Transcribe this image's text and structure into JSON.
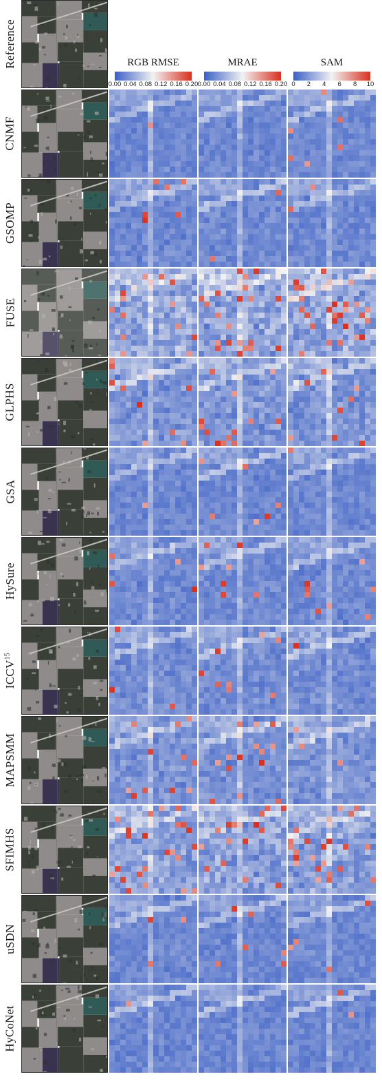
{
  "rows": [
    {
      "label": "Reference",
      "sup": "",
      "has_maps": false,
      "severity": 0
    },
    {
      "label": "CNMF",
      "sup": "",
      "has_maps": true,
      "severity": 0.15
    },
    {
      "label": "GSOMP",
      "sup": "",
      "has_maps": true,
      "severity": 0.2
    },
    {
      "label": "FUSE",
      "sup": "",
      "has_maps": true,
      "severity": 0.95
    },
    {
      "label": "GLPHS",
      "sup": "",
      "has_maps": true,
      "severity": 0.55
    },
    {
      "label": "GSA",
      "sup": "",
      "has_maps": true,
      "severity": 0.15
    },
    {
      "label": "HySure",
      "sup": "",
      "has_maps": true,
      "severity": 0.2
    },
    {
      "label": "ICCV",
      "sup": "15",
      "has_maps": true,
      "severity": 0.3
    },
    {
      "label": "MAPSMM",
      "sup": "",
      "has_maps": true,
      "severity": 0.45
    },
    {
      "label": "SFIMHS",
      "sup": "",
      "has_maps": true,
      "severity": 0.8
    },
    {
      "label": "uSDN",
      "sup": "",
      "has_maps": true,
      "severity": 0.15
    },
    {
      "label": "HyCoNet",
      "sup": "",
      "has_maps": true,
      "severity": 0.1
    }
  ],
  "columns": [
    {
      "title": "RGB RMSE",
      "ticks": [
        "0.00",
        "0.04",
        "0.08",
        "0.12",
        "0.16",
        "0.20"
      ]
    },
    {
      "title": "MRAE",
      "ticks": [
        "0.00",
        "0.04",
        "0.08",
        "0.12",
        "0.16",
        "0.20"
      ]
    },
    {
      "title": "SAM",
      "ticks": [
        "0",
        "2",
        "4",
        "6",
        "8",
        "10"
      ]
    }
  ],
  "colors": {
    "cmap_low": "#3b5fc4",
    "cmap_mid": "#f2f2f2",
    "cmap_high": "#d7301f",
    "field_dark": "#3a4038",
    "field_light": "#8e8b8a",
    "field_teal": "#2f5a55",
    "field_purple": "#3a3350",
    "road": "#c9c8c4"
  }
}
